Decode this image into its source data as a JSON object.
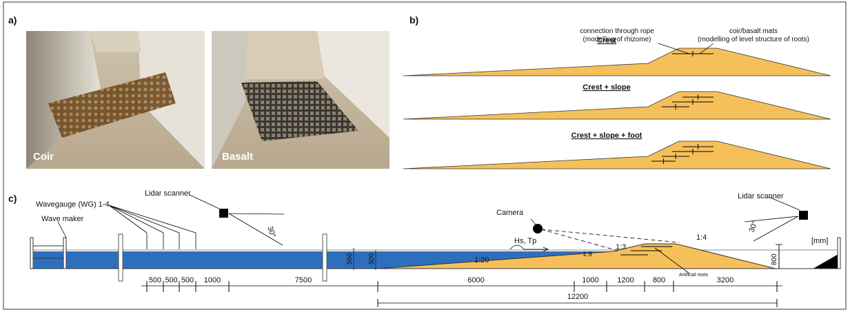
{
  "panel_a": {
    "label": "a)",
    "photos": [
      "Coir",
      "Basalt"
    ]
  },
  "panel_b": {
    "label": "b)",
    "profiles": [
      "Crest",
      "Crest + slope",
      "Crest + slope + foot"
    ],
    "annotations": [
      "connection through rope",
      "(modelling of rhizome)",
      "coir/basalt mats",
      "(modelling of level structure of roots)"
    ]
  },
  "panel_c": {
    "label": "c)",
    "lidar_left": "Lidar scanner",
    "lidar_right": "Lidar scanner",
    "wavegauge": "Wavegauge (WG) 1-4",
    "wave_maker": "Wave maker",
    "angle_left": "30°",
    "angle_right": "30°",
    "camera": "Camera",
    "wave": "Hs, Tp",
    "depth_1": "560",
    "depth_2": "500",
    "slopes": [
      "1:20",
      "1:9",
      "1:3",
      "1:4"
    ],
    "roots": "Artificial roots",
    "height": "800",
    "unit": "[mm]",
    "dimensions": [
      "500",
      "500",
      "500",
      "1000",
      "7500",
      "6000",
      "1000",
      "1200",
      "800",
      "3200"
    ],
    "total": "12200"
  }
}
